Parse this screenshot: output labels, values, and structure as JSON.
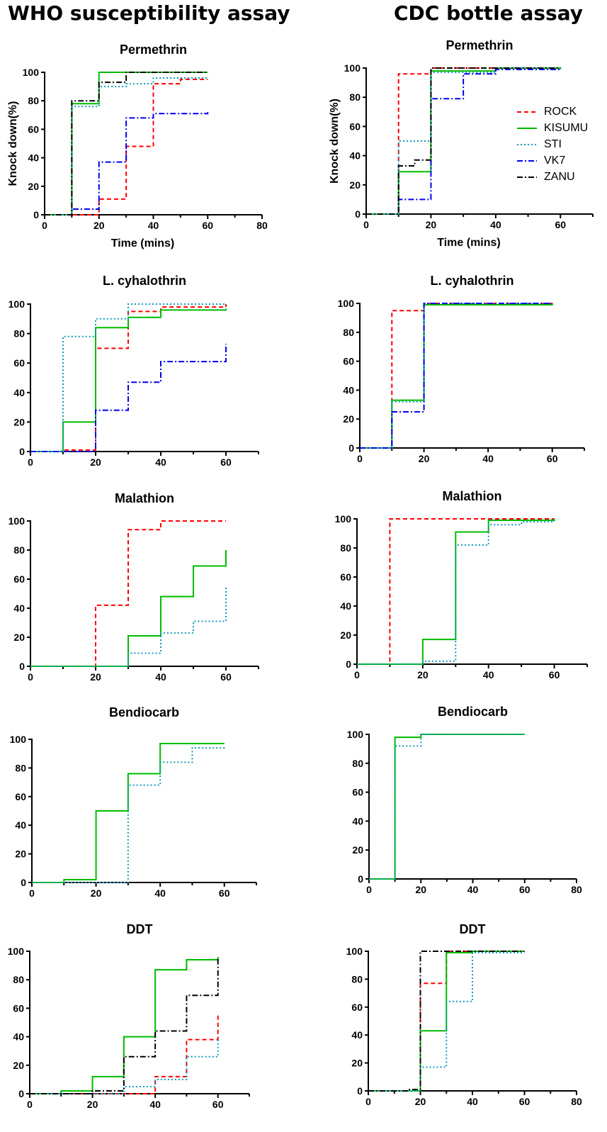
{
  "column_titles": {
    "left": "WHO susceptibility assay",
    "right": "CDC bottle assay"
  },
  "colors": {
    "ROCK": "#ff0000",
    "KISUMU": "#00bb00",
    "STI": "#1199bb",
    "VK7": "#0000ee",
    "ZANU": "#000000"
  },
  "legend": [
    {
      "name": "ROCK",
      "color": "#ff0000",
      "dash": "6,4"
    },
    {
      "name": "KISUMU",
      "color": "#00bb00",
      "dash": ""
    },
    {
      "name": "STI",
      "color": "#1199bb",
      "dash": "2,3"
    },
    {
      "name": "VK7",
      "color": "#0000ee",
      "dash": "8,3,2,3"
    },
    {
      "name": "ZANU",
      "color": "#000000",
      "dash": "8,3,2,3"
    }
  ],
  "chart_data": [
    {
      "id": "who-permethrin",
      "type": "line",
      "step": true,
      "title": "Permethrin",
      "xlabel": "Time (mins)",
      "ylabel": "Knock down(%)",
      "xlim": [
        0,
        80
      ],
      "ylim": [
        0,
        100
      ],
      "xticks": [
        0,
        20,
        40,
        60,
        80
      ],
      "yticks": [
        0,
        20,
        40,
        60,
        80,
        100
      ],
      "series": [
        {
          "name": "ROCK",
          "x": [
            0,
            20,
            30,
            40,
            50,
            60
          ],
          "y": [
            0,
            11,
            48,
            92,
            95,
            95
          ]
        },
        {
          "name": "KISUMU",
          "x": [
            0,
            10,
            20,
            30,
            60
          ],
          "y": [
            0,
            78,
            100,
            100,
            100
          ]
        },
        {
          "name": "STI",
          "x": [
            0,
            10,
            20,
            30,
            40,
            60
          ],
          "y": [
            0,
            76,
            90,
            92,
            96,
            97
          ]
        },
        {
          "name": "VK7",
          "x": [
            0,
            10,
            20,
            30,
            40,
            60
          ],
          "y": [
            0,
            4,
            37,
            68,
            71,
            72
          ]
        },
        {
          "name": "ZANU",
          "x": [
            0,
            10,
            20,
            30,
            60
          ],
          "y": [
            0,
            80,
            93,
            100,
            100
          ]
        }
      ]
    },
    {
      "id": "cdc-permethrin",
      "type": "line",
      "step": true,
      "title": "Permethrin",
      "xlabel": "Time (mins)",
      "ylabel": "Knock down(%)",
      "xlim": [
        0,
        70
      ],
      "ylim": [
        0,
        100
      ],
      "xticks": [
        0,
        20,
        40,
        60
      ],
      "yticks": [
        0,
        20,
        40,
        60,
        80,
        100
      ],
      "series": [
        {
          "name": "ROCK",
          "x": [
            0,
            10,
            20,
            60
          ],
          "y": [
            0,
            96,
            100,
            100
          ]
        },
        {
          "name": "KISUMU",
          "x": [
            0,
            10,
            20,
            40,
            60
          ],
          "y": [
            0,
            29,
            98,
            100,
            100
          ]
        },
        {
          "name": "STI",
          "x": [
            0,
            10,
            20,
            40,
            60
          ],
          "y": [
            0,
            50,
            97,
            100,
            99
          ]
        },
        {
          "name": "VK7",
          "x": [
            0,
            10,
            20,
            30,
            40,
            60
          ],
          "y": [
            0,
            10,
            79,
            96,
            99,
            99
          ]
        },
        {
          "name": "ZANU",
          "x": [
            0,
            10,
            15,
            20,
            60
          ],
          "y": [
            0,
            33,
            37,
            100,
            100
          ]
        }
      ]
    },
    {
      "id": "who-lcyhalothrin",
      "type": "line",
      "step": true,
      "title": "L. cyhalothrin",
      "xlabel": "",
      "ylabel": "",
      "xlim": [
        0,
        70
      ],
      "ylim": [
        0,
        100
      ],
      "xticks": [
        0,
        20,
        40,
        60
      ],
      "yticks": [
        0,
        20,
        40,
        60,
        80,
        100
      ],
      "series": [
        {
          "name": "ROCK",
          "x": [
            0,
            10,
            20,
            30,
            40,
            60
          ],
          "y": [
            0,
            1,
            70,
            95,
            98,
            100
          ]
        },
        {
          "name": "KISUMU",
          "x": [
            0,
            10,
            20,
            30,
            40,
            60
          ],
          "y": [
            0,
            20,
            84,
            91,
            96,
            97
          ]
        },
        {
          "name": "STI",
          "x": [
            0,
            10,
            20,
            30,
            60
          ],
          "y": [
            0,
            78,
            90,
            100,
            100
          ]
        },
        {
          "name": "VK7",
          "x": [
            0,
            20,
            30,
            40,
            60
          ],
          "y": [
            0,
            28,
            47,
            61,
            73
          ]
        }
      ]
    },
    {
      "id": "cdc-lcyhalothrin",
      "type": "line",
      "step": true,
      "title": "L. cyhalothrin",
      "xlabel": "",
      "ylabel": "",
      "xlim": [
        0,
        70
      ],
      "ylim": [
        0,
        100
      ],
      "xticks": [
        0,
        20,
        40,
        60
      ],
      "yticks": [
        0,
        20,
        40,
        60,
        80,
        100
      ],
      "series": [
        {
          "name": "ROCK",
          "x": [
            0,
            10,
            20,
            60
          ],
          "y": [
            0,
            95,
            100,
            100
          ]
        },
        {
          "name": "KISUMU",
          "x": [
            0,
            10,
            20,
            60
          ],
          "y": [
            0,
            33,
            99,
            100
          ]
        },
        {
          "name": "STI",
          "x": [
            0,
            10,
            20,
            60
          ],
          "y": [
            0,
            32,
            100,
            100
          ]
        },
        {
          "name": "VK7",
          "x": [
            0,
            10,
            20,
            60
          ],
          "y": [
            0,
            25,
            100,
            100
          ]
        }
      ]
    },
    {
      "id": "who-malathion",
      "type": "line",
      "step": true,
      "title": "Malathion",
      "xlabel": "",
      "ylabel": "",
      "xlim": [
        0,
        70
      ],
      "ylim": [
        0,
        100
      ],
      "xticks": [
        0,
        20,
        40,
        60
      ],
      "yticks": [
        0,
        20,
        40,
        60,
        80,
        100
      ],
      "series": [
        {
          "name": "ROCK",
          "x": [
            0,
            20,
            30,
            40,
            60
          ],
          "y": [
            0,
            42,
            94,
            100,
            100
          ]
        },
        {
          "name": "KISUMU",
          "x": [
            0,
            30,
            40,
            50,
            60
          ],
          "y": [
            0,
            21,
            48,
            69,
            80
          ]
        },
        {
          "name": "STI",
          "x": [
            0,
            30,
            40,
            50,
            60
          ],
          "y": [
            0,
            9,
            23,
            31,
            55
          ]
        }
      ]
    },
    {
      "id": "cdc-malathion",
      "type": "line",
      "step": true,
      "title": "Malathion",
      "xlabel": "",
      "ylabel": "",
      "xlim": [
        0,
        70
      ],
      "ylim": [
        0,
        100
      ],
      "xticks": [
        0,
        20,
        40,
        60
      ],
      "yticks": [
        0,
        20,
        40,
        60,
        80,
        100
      ],
      "series": [
        {
          "name": "ROCK",
          "x": [
            0,
            10,
            60
          ],
          "y": [
            0,
            100,
            100
          ]
        },
        {
          "name": "KISUMU",
          "x": [
            0,
            20,
            30,
            40,
            60
          ],
          "y": [
            0,
            17,
            91,
            99,
            100
          ]
        },
        {
          "name": "STI",
          "x": [
            0,
            20,
            30,
            40,
            50,
            60
          ],
          "y": [
            0,
            2,
            82,
            96,
            98,
            99
          ]
        }
      ]
    },
    {
      "id": "who-bendiocarb",
      "type": "line",
      "step": true,
      "title": "Bendiocarb",
      "xlabel": "",
      "ylabel": "",
      "xlim": [
        0,
        70
      ],
      "ylim": [
        0,
        100
      ],
      "xticks": [
        0,
        20,
        40,
        60
      ],
      "yticks": [
        0,
        20,
        40,
        60,
        80,
        100
      ],
      "series": [
        {
          "name": "KISUMU",
          "x": [
            0,
            10,
            20,
            30,
            40,
            60
          ],
          "y": [
            0,
            2,
            50,
            76,
            97,
            97
          ]
        },
        {
          "name": "STI",
          "x": [
            0,
            30,
            40,
            50,
            60
          ],
          "y": [
            0,
            68,
            84,
            94,
            95
          ]
        }
      ]
    },
    {
      "id": "cdc-bendiocarb",
      "type": "line",
      "step": true,
      "title": "Bendiocarb",
      "xlabel": "",
      "ylabel": "",
      "xlim": [
        0,
        80
      ],
      "ylim": [
        0,
        100
      ],
      "xticks": [
        0,
        20,
        40,
        60,
        80
      ],
      "yticks": [
        0,
        20,
        40,
        60,
        80,
        100
      ],
      "series": [
        {
          "name": "KISUMU",
          "x": [
            0,
            10,
            20,
            60
          ],
          "y": [
            0,
            98,
            100,
            100
          ]
        },
        {
          "name": "STI",
          "x": [
            0,
            10,
            20,
            60
          ],
          "y": [
            0,
            92,
            100,
            100
          ]
        }
      ]
    },
    {
      "id": "who-ddt",
      "type": "line",
      "step": true,
      "title": "DDT",
      "xlabel": "",
      "ylabel": "",
      "xlim": [
        0,
        70
      ],
      "ylim": [
        0,
        100
      ],
      "xticks": [
        0,
        20,
        40,
        60
      ],
      "yticks": [
        0,
        20,
        40,
        60,
        80,
        100
      ],
      "series": [
        {
          "name": "ROCK",
          "x": [
            0,
            40,
            50,
            60
          ],
          "y": [
            0,
            12,
            38,
            55
          ]
        },
        {
          "name": "KISUMU",
          "x": [
            0,
            10,
            20,
            30,
            40,
            50,
            60
          ],
          "y": [
            0,
            2,
            12,
            40,
            87,
            94,
            96
          ]
        },
        {
          "name": "STI",
          "x": [
            0,
            30,
            40,
            50,
            60
          ],
          "y": [
            0,
            5,
            10,
            26,
            38
          ]
        },
        {
          "name": "ZANU",
          "x": [
            0,
            20,
            30,
            40,
            50,
            60
          ],
          "y": [
            0,
            2,
            26,
            44,
            69,
            96
          ]
        }
      ]
    },
    {
      "id": "cdc-ddt",
      "type": "line",
      "step": true,
      "title": "DDT",
      "xlabel": "",
      "ylabel": "",
      "xlim": [
        0,
        80
      ],
      "ylim": [
        0,
        100
      ],
      "xticks": [
        0,
        20,
        40,
        60,
        80
      ],
      "yticks": [
        0,
        20,
        40,
        60,
        80,
        100
      ],
      "series": [
        {
          "name": "ROCK",
          "x": [
            0,
            20,
            30,
            60
          ],
          "y": [
            0,
            77,
            100,
            100
          ]
        },
        {
          "name": "KISUMU",
          "x": [
            0,
            20,
            30,
            40,
            60
          ],
          "y": [
            0,
            43,
            99,
            100,
            100
          ]
        },
        {
          "name": "STI",
          "x": [
            0,
            20,
            30,
            40,
            60
          ],
          "y": [
            0,
            17,
            64,
            99,
            99
          ]
        },
        {
          "name": "ZANU",
          "x": [
            0,
            15,
            20,
            60
          ],
          "y": [
            0,
            1,
            100,
            100
          ]
        }
      ]
    }
  ]
}
